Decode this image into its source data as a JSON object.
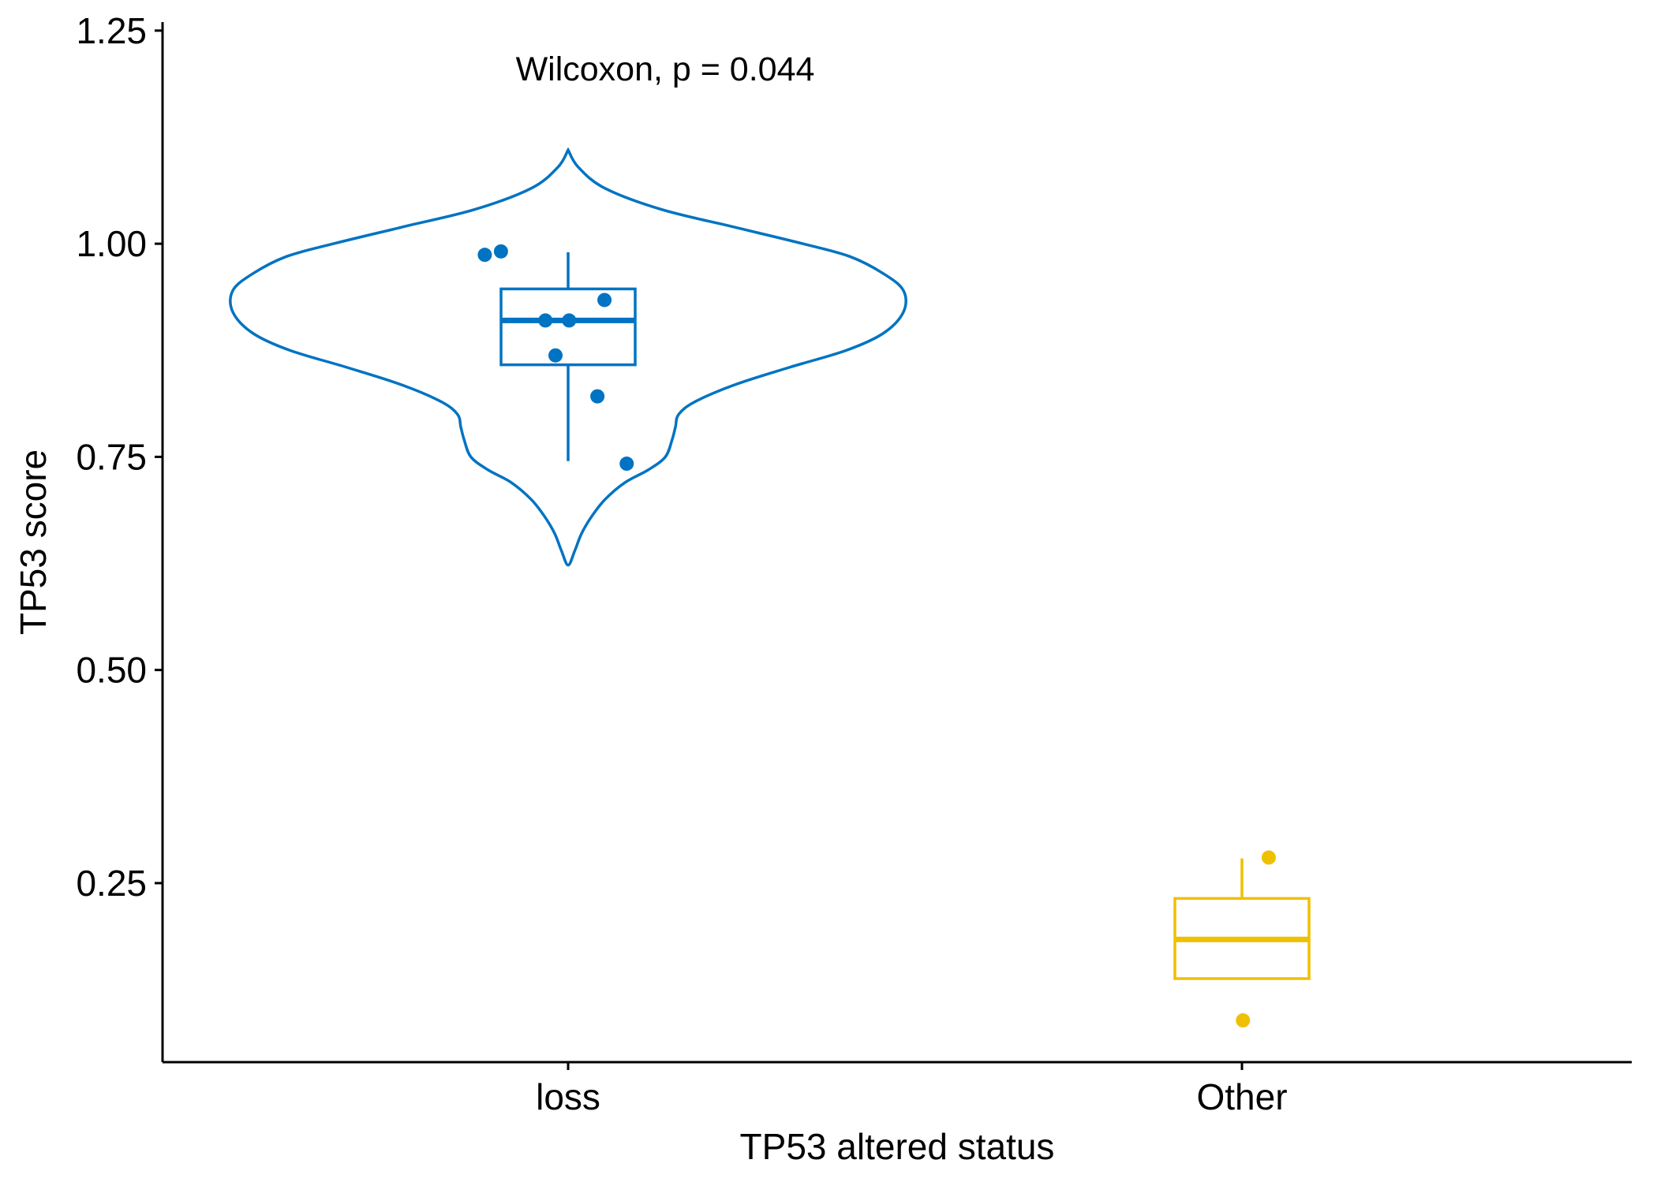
{
  "chart_data": {
    "type": "violin-box",
    "xlabel": "TP53 altered status",
    "ylabel": "TP53 score",
    "annotation": "Wilcoxon, p = 0.044",
    "categories": [
      "loss",
      "Other"
    ],
    "ylim": [
      0.04,
      1.26
    ],
    "y_ticks": [
      0.25,
      0.5,
      0.75,
      1.0,
      1.25
    ],
    "y_tick_labels": [
      "0.25",
      "0.50",
      "0.75",
      "1.00",
      "1.25"
    ],
    "grid": false,
    "legend": "none",
    "groups": [
      {
        "name": "loss",
        "color": "#0073C2",
        "box": {
          "whisker_low": 0.745,
          "q1": 0.858,
          "median": 0.91,
          "q3": 0.947,
          "whisker_high": 0.99
        },
        "points": [
          {
            "x_jitter": -0.165,
            "y": 0.987
          },
          {
            "x_jitter": -0.133,
            "y": 0.991
          },
          {
            "x_jitter": 0.072,
            "y": 0.934
          },
          {
            "x_jitter": -0.045,
            "y": 0.91
          },
          {
            "x_jitter": 0.002,
            "y": 0.91
          },
          {
            "x_jitter": -0.025,
            "y": 0.869
          },
          {
            "x_jitter": 0.058,
            "y": 0.821
          },
          {
            "x_jitter": 0.116,
            "y": 0.742
          }
        ],
        "violin": [
          [
            1.11,
            0.0
          ],
          [
            1.09,
            0.015
          ],
          [
            1.065,
            0.055
          ],
          [
            1.04,
            0.14
          ],
          [
            1.02,
            0.245
          ],
          [
            1.0,
            0.35
          ],
          [
            0.985,
            0.42
          ],
          [
            0.965,
            0.47
          ],
          [
            0.945,
            0.5
          ],
          [
            0.92,
            0.5
          ],
          [
            0.895,
            0.47
          ],
          [
            0.875,
            0.415
          ],
          [
            0.855,
            0.33
          ],
          [
            0.835,
            0.25
          ],
          [
            0.815,
            0.19
          ],
          [
            0.8,
            0.165
          ],
          [
            0.785,
            0.16
          ],
          [
            0.77,
            0.155
          ],
          [
            0.75,
            0.145
          ],
          [
            0.735,
            0.12
          ],
          [
            0.72,
            0.085
          ],
          [
            0.7,
            0.055
          ],
          [
            0.68,
            0.035
          ],
          [
            0.66,
            0.02
          ],
          [
            0.64,
            0.01
          ],
          [
            0.623,
            0.0
          ]
        ]
      },
      {
        "name": "Other",
        "color": "#EFC000",
        "box": {
          "whisker_low": 0.138,
          "q1": 0.138,
          "median": 0.184,
          "q3": 0.232,
          "whisker_high": 0.279
        },
        "points": [
          {
            "x_jitter": 0.053,
            "y": 0.28
          },
          {
            "x_jitter": 0.002,
            "y": 0.089
          }
        ]
      }
    ]
  }
}
